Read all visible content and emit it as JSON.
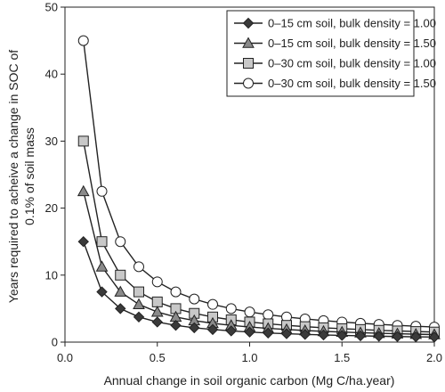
{
  "chart_data": {
    "type": "line",
    "title": "",
    "xlabel": "Annual change in soil organic carbon (Mg C/ha.year)",
    "ylabel": "Years required to acheive a change in SOC of",
    "ylabel_line2": "0.1% of soil mass",
    "xlim": [
      0,
      2.0
    ],
    "ylim": [
      0,
      50
    ],
    "x_ticks": [
      0.0,
      0.5,
      1.0,
      1.5,
      2.0
    ],
    "x_tick_labels": [
      "0.0",
      "0.5",
      "1.0",
      "1.5",
      "2.0"
    ],
    "y_ticks": [
      0,
      10,
      20,
      30,
      40,
      50
    ],
    "y_tick_labels": [
      "0",
      "10",
      "20",
      "30",
      "40",
      "50"
    ],
    "grid": false,
    "legend_position": "top-right",
    "x": [
      0.1,
      0.2,
      0.3,
      0.4,
      0.5,
      0.6,
      0.7,
      0.8,
      0.9,
      1.0,
      1.1,
      1.2,
      1.3,
      1.4,
      1.5,
      1.6,
      1.7,
      1.8,
      1.9,
      2.0
    ],
    "series": [
      {
        "name": "0–15 cm soil, bulk density = 1.00",
        "marker": "diamond",
        "color": "#3a3a3a",
        "values": [
          15.0,
          7.5,
          5.0,
          3.75,
          3.0,
          2.5,
          2.14,
          1.88,
          1.67,
          1.5,
          1.36,
          1.25,
          1.15,
          1.07,
          1.0,
          0.94,
          0.88,
          0.83,
          0.79,
          0.75
        ]
      },
      {
        "name": "0–15 cm soil, bulk density = 1.50",
        "marker": "triangle",
        "color": "#8a8a8a",
        "values": [
          22.5,
          11.25,
          7.5,
          5.63,
          4.5,
          3.75,
          3.21,
          2.81,
          2.5,
          2.25,
          2.05,
          1.88,
          1.73,
          1.61,
          1.5,
          1.41,
          1.32,
          1.25,
          1.18,
          1.13
        ]
      },
      {
        "name": "0–30 cm soil, bulk density = 1.00",
        "marker": "square",
        "color": "#c8c8c8",
        "values": [
          30.0,
          15.0,
          10.0,
          7.5,
          6.0,
          5.0,
          4.29,
          3.75,
          3.33,
          3.0,
          2.73,
          2.5,
          2.31,
          2.14,
          2.0,
          1.88,
          1.76,
          1.67,
          1.58,
          1.5
        ]
      },
      {
        "name": "0–30 cm soil, bulk density = 1.50",
        "marker": "circle",
        "color": "#ffffff",
        "values": [
          45.0,
          22.5,
          15.0,
          11.25,
          9.0,
          7.5,
          6.43,
          5.63,
          5.0,
          4.5,
          4.09,
          3.75,
          3.46,
          3.21,
          3.0,
          2.81,
          2.65,
          2.5,
          2.37,
          2.25
        ]
      }
    ]
  }
}
